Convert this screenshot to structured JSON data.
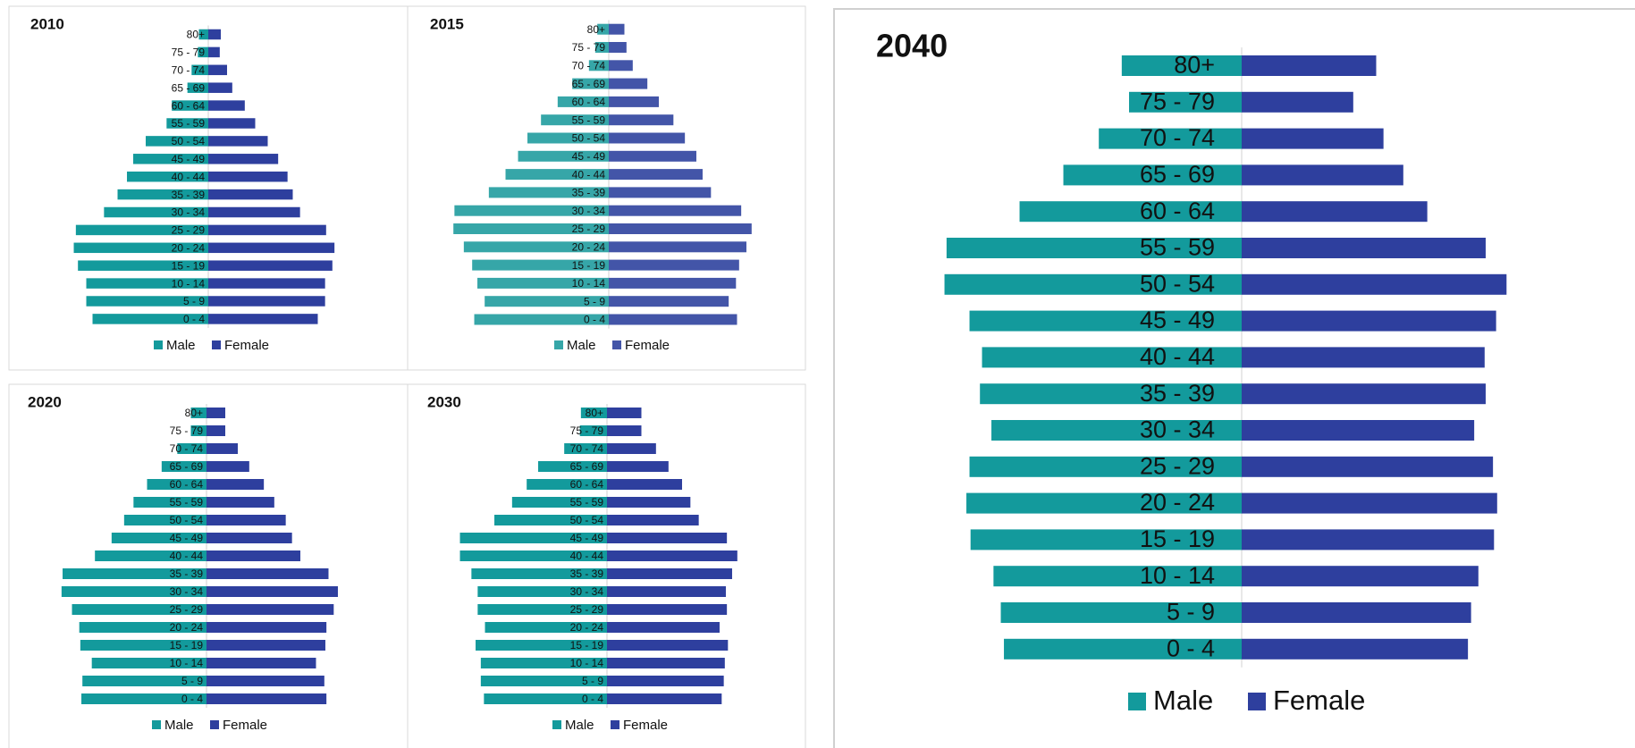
{
  "chart_data": [
    {
      "type": "bar",
      "title": "2010",
      "categories": [
        "80+",
        "75 - 79",
        "70 - 74",
        "65 - 69",
        "60 - 64",
        "55 - 59",
        "50 - 54",
        "45 - 49",
        "40 - 44",
        "35 - 39",
        "30 - 34",
        "25 - 29",
        "20 - 24",
        "15 - 19",
        "10 - 14",
        "5 - 9",
        "0 - 4"
      ],
      "series": [
        {
          "name": "Male",
          "color": "#139a9c",
          "values": [
            9,
            10,
            16,
            20,
            35,
            40,
            60,
            72,
            78,
            87,
            100,
            127,
            129,
            125,
            117,
            117,
            111
          ]
        },
        {
          "name": "Female",
          "color": "#2e3f9e",
          "values": [
            12,
            11,
            18,
            23,
            35,
            45,
            57,
            67,
            76,
            81,
            88,
            113,
            121,
            119,
            112,
            112,
            105
          ]
        }
      ]
    },
    {
      "type": "bar",
      "title": "2015",
      "categories": [
        "80+",
        "75 - 79",
        "70 - 74",
        "65 - 69",
        "60 - 64",
        "55 - 59",
        "50 - 54",
        "45 - 49",
        "40 - 44",
        "35 - 39",
        "30 - 34",
        "25 - 29",
        "20 - 24",
        "15 - 19",
        "10 - 14",
        "5 - 9",
        "0 - 4"
      ],
      "series": [
        {
          "name": "Male",
          "color": "#36a6a8",
          "values": [
            11,
            13,
            19,
            35,
            49,
            65,
            78,
            87,
            99,
            115,
            148,
            149,
            139,
            131,
            126,
            119,
            129
          ]
        },
        {
          "name": "Female",
          "color": "#4355a8",
          "values": [
            15,
            17,
            23,
            37,
            48,
            62,
            73,
            84,
            90,
            98,
            127,
            137,
            132,
            125,
            122,
            115,
            123
          ]
        }
      ]
    },
    {
      "type": "bar",
      "title": "2020",
      "categories": [
        "80+",
        "75 - 79",
        "70 - 74",
        "65 - 69",
        "60 - 64",
        "55 - 59",
        "50 - 54",
        "45 - 49",
        "40 - 44",
        "35 - 39",
        "30 - 34",
        "25 - 29",
        "20 - 24",
        "15 - 19",
        "10 - 14",
        "5 - 9",
        "0 - 4"
      ],
      "series": [
        {
          "name": "Male",
          "color": "#139a9c",
          "values": [
            15,
            15,
            28,
            43,
            57,
            70,
            79,
            91,
            107,
            138,
            139,
            129,
            122,
            121,
            110,
            119,
            120
          ]
        },
        {
          "name": "Female",
          "color": "#2e3f9e",
          "values": [
            18,
            18,
            30,
            41,
            55,
            65,
            76,
            82,
            90,
            117,
            126,
            122,
            115,
            114,
            105,
            113,
            115
          ]
        }
      ]
    },
    {
      "type": "bar",
      "title": "2030",
      "categories": [
        "80+",
        "75 - 79",
        "70 - 74",
        "65 - 69",
        "60 - 64",
        "55 - 59",
        "50 - 54",
        "45 - 49",
        "40 - 44",
        "35 - 39",
        "30 - 34",
        "25 - 29",
        "20 - 24",
        "15 - 19",
        "10 - 14",
        "5 - 9",
        "0 - 4"
      ],
      "series": [
        {
          "name": "Male",
          "color": "#139a9c",
          "values": [
            25,
            26,
            41,
            66,
            77,
            91,
            108,
            141,
            141,
            130,
            124,
            124,
            117,
            126,
            121,
            121,
            118
          ]
        },
        {
          "name": "Female",
          "color": "#2e3f9e",
          "values": [
            33,
            33,
            47,
            59,
            72,
            80,
            88,
            115,
            125,
            120,
            114,
            115,
            108,
            116,
            113,
            112,
            110
          ]
        }
      ]
    },
    {
      "type": "bar",
      "title": "2040",
      "categories": [
        "80+",
        "75 - 79",
        "70 - 74",
        "65 - 69",
        "60 - 64",
        "55 - 59",
        "50 - 54",
        "45 - 49",
        "40 - 44",
        "35 - 39",
        "30 - 34",
        "25 - 29",
        "20 - 24",
        "15 - 19",
        "10 - 14",
        "5 - 9",
        "0 - 4"
      ],
      "series": [
        {
          "name": "Male",
          "color": "#139a9c",
          "values": [
            115,
            108,
            137,
            171,
            213,
            283,
            285,
            261,
            249,
            251,
            240,
            261,
            264,
            260,
            238,
            231,
            228
          ]
        },
        {
          "name": "Female",
          "color": "#2e3f9e",
          "values": [
            129,
            107,
            136,
            155,
            178,
            234,
            254,
            244,
            233,
            234,
            223,
            241,
            245,
            242,
            227,
            220,
            217
          ]
        }
      ]
    }
  ]
}
